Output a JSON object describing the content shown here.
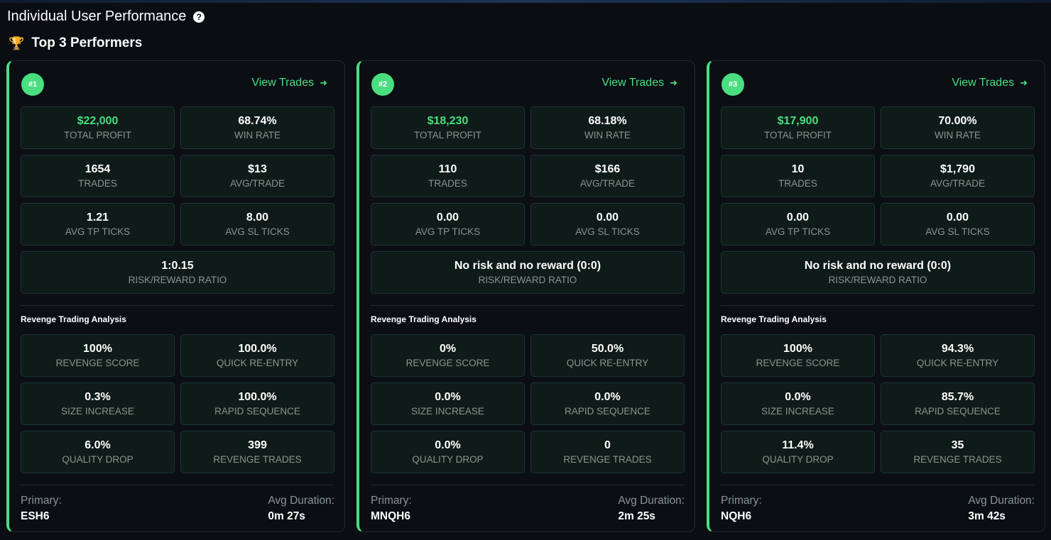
{
  "header": {
    "title": "Individual User Performance",
    "help_icon": "?",
    "subtitle": "Top 3 Performers",
    "trophy_icon": "🏆"
  },
  "accent_color": "#4ade80",
  "labels": {
    "view_trades": "View Trades",
    "arrow": "➜",
    "total_profit": "TOTAL PROFIT",
    "win_rate": "WIN RATE",
    "trades": "TRADES",
    "avg_trade": "AVG/TRADE",
    "avg_tp_ticks": "AVG TP TICKS",
    "avg_sl_ticks": "AVG SL TICKS",
    "risk_reward": "RISK/REWARD RATIO",
    "revenge_section": "Revenge Trading Analysis",
    "revenge_score": "REVENGE SCORE",
    "quick_reentry": "QUICK RE-ENTRY",
    "size_increase": "SIZE INCREASE",
    "rapid_sequence": "RAPID SEQUENCE",
    "quality_drop": "QUALITY DROP",
    "revenge_trades": "REVENGE TRADES",
    "primary": "Primary:",
    "avg_duration": "Avg Duration:"
  },
  "performers": [
    {
      "rank": "#1",
      "total_profit": "$22,000",
      "win_rate": "68.74%",
      "trades": "1654",
      "avg_trade": "$13",
      "avg_tp_ticks": "1.21",
      "avg_sl_ticks": "8.00",
      "risk_reward": "1:0.15",
      "revenge_score": "100%",
      "quick_reentry": "100.0%",
      "size_increase": "0.3%",
      "rapid_sequence": "100.0%",
      "quality_drop": "6.0%",
      "revenge_trades": "399",
      "primary": "ESH6",
      "avg_duration": "0m 27s"
    },
    {
      "rank": "#2",
      "total_profit": "$18,230",
      "win_rate": "68.18%",
      "trades": "110",
      "avg_trade": "$166",
      "avg_tp_ticks": "0.00",
      "avg_sl_ticks": "0.00",
      "risk_reward": "No risk and no reward (0:0)",
      "revenge_score": "0%",
      "quick_reentry": "50.0%",
      "size_increase": "0.0%",
      "rapid_sequence": "0.0%",
      "quality_drop": "0.0%",
      "revenge_trades": "0",
      "primary": "MNQH6",
      "avg_duration": "2m 25s"
    },
    {
      "rank": "#3",
      "total_profit": "$17,900",
      "win_rate": "70.00%",
      "trades": "10",
      "avg_trade": "$1,790",
      "avg_tp_ticks": "0.00",
      "avg_sl_ticks": "0.00",
      "risk_reward": "No risk and no reward (0:0)",
      "revenge_score": "100%",
      "quick_reentry": "94.3%",
      "size_increase": "0.0%",
      "rapid_sequence": "85.7%",
      "quality_drop": "11.4%",
      "revenge_trades": "35",
      "primary": "NQH6",
      "avg_duration": "3m 42s"
    }
  ]
}
